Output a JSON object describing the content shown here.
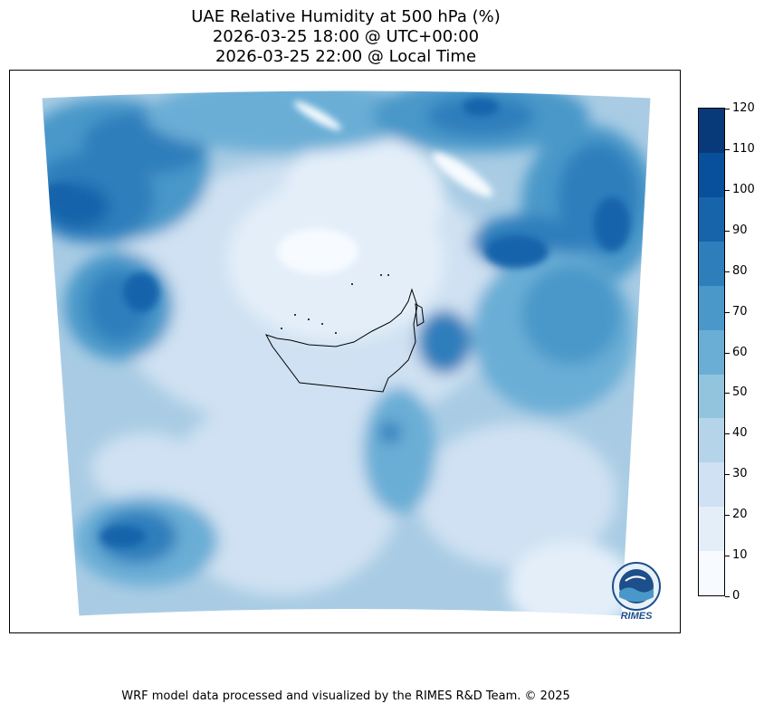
{
  "title": {
    "line1": "UAE Relative Humidity at 500 hPa (%)",
    "line2": "2026-03-25 18:00 @ UTC+00:00",
    "line3": "2026-03-25 22:00 @ Local Time"
  },
  "colorbar": {
    "ticks": [
      "0",
      "10",
      "20",
      "30",
      "40",
      "50",
      "60",
      "70",
      "80",
      "90",
      "100",
      "110",
      "120"
    ],
    "colors": [
      "#f7fbff",
      "#e3eef9",
      "#cfe1f2",
      "#b5d4e9",
      "#93c4de",
      "#6aaed6",
      "#4a98c9",
      "#2e7ebc",
      "#1764ab",
      "#08509b",
      "#083a7a"
    ]
  },
  "footer": "WRF model data processed and visualized by the RIMES R&D Team. © 2025",
  "logo": {
    "text": "RIMES"
  }
}
